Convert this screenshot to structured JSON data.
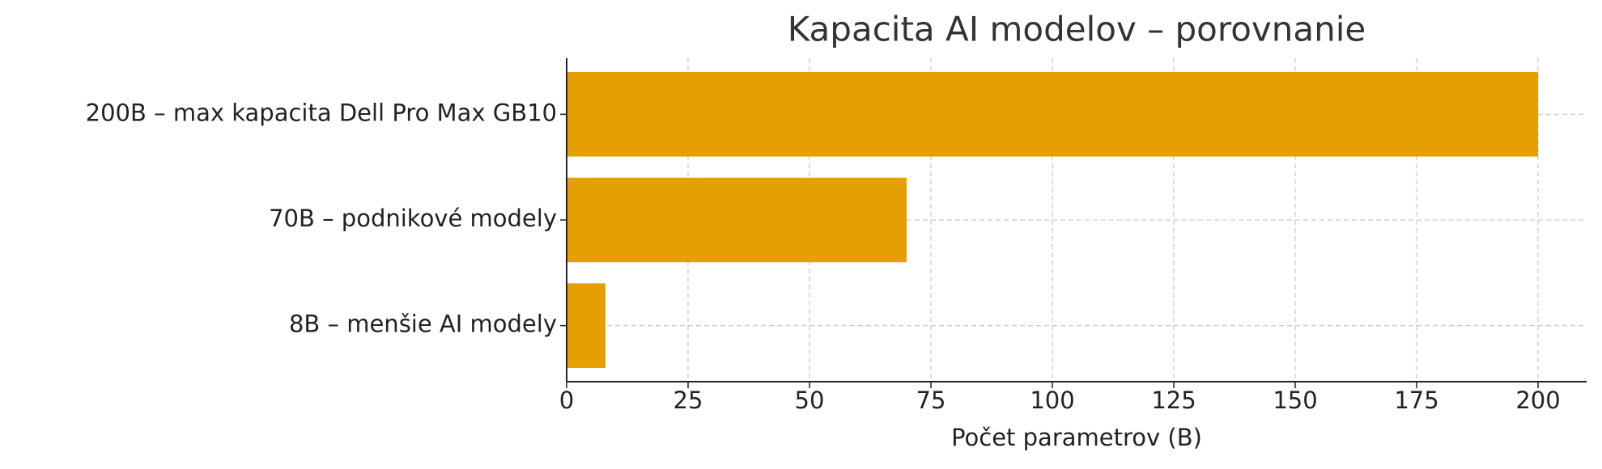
{
  "chart_data": {
    "type": "bar",
    "orientation": "horizontal",
    "title": "Kapacita AI modelov – porovnanie",
    "x_label": "Počet parametrov (B)",
    "categories": [
      "200B – max kapacita Dell Pro Max GB10",
      "70B – podnikové modely",
      "8B – menšie AI modely"
    ],
    "values": [
      200,
      70,
      8
    ],
    "color": "#e69f00",
    "xlim": [
      0,
      210
    ],
    "xticks": [
      0,
      25,
      50,
      75,
      100,
      125,
      150,
      175,
      200
    ],
    "grid": true
  }
}
